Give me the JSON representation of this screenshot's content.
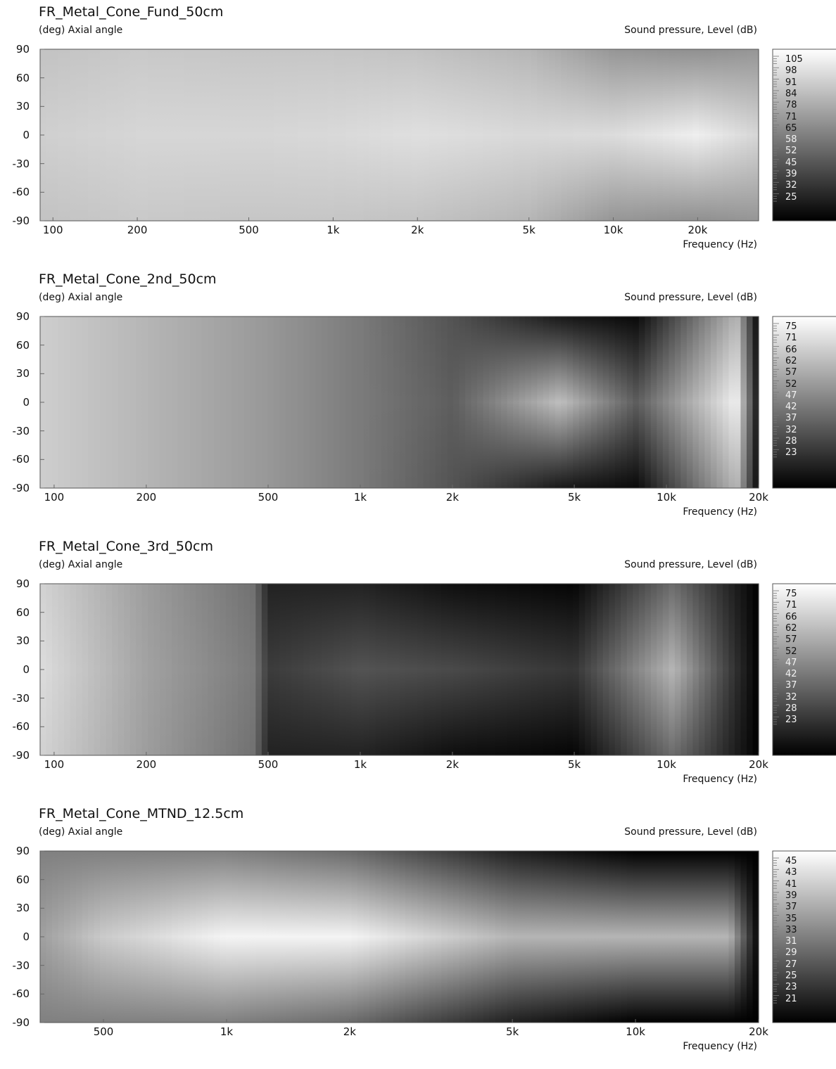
{
  "chart_data": [
    {
      "type": "heatmap",
      "title": "FR_Metal_Cone_Fund_50cm",
      "ylabel": "(deg)  Axial angle",
      "colorbar_label": "Sound pressure, Level  (dB)",
      "xlabel": "Frequency  (Hz)",
      "xscale": "log",
      "xlim": [
        90,
        33000
      ],
      "ylim": [
        -90,
        90
      ],
      "yticks": [
        90,
        60,
        30,
        0,
        -30,
        -60,
        -90
      ],
      "xticks": [
        {
          "v": 100,
          "label": "100"
        },
        {
          "v": 200,
          "label": "200"
        },
        {
          "v": 500,
          "label": "500"
        },
        {
          "v": 1000,
          "label": "1k"
        },
        {
          "v": 2000,
          "label": "2k"
        },
        {
          "v": 5000,
          "label": "5k"
        },
        {
          "v": 10000,
          "label": "10k"
        },
        {
          "v": 20000,
          "label": "20k"
        }
      ],
      "colorbar_ticks": [
        "105",
        "98",
        "91",
        "84",
        "78",
        "71",
        "65",
        "58",
        "52",
        "45",
        "39",
        "32",
        "25"
      ],
      "clim": [
        25,
        105
      ],
      "colormap": [
        "#000000",
        "#ffffff"
      ],
      "level_profile": [
        {
          "f": 90,
          "on_axis_db": 90,
          "edge_db": 86
        },
        {
          "f": 200,
          "on_axis_db": 92,
          "edge_db": 88
        },
        {
          "f": 500,
          "on_axis_db": 92,
          "edge_db": 87
        },
        {
          "f": 1000,
          "on_axis_db": 93,
          "edge_db": 87
        },
        {
          "f": 2000,
          "on_axis_db": 95,
          "edge_db": 86
        },
        {
          "f": 5000,
          "on_axis_db": 93,
          "edge_db": 82
        },
        {
          "f": 10000,
          "on_axis_db": 94,
          "edge_db": 72
        },
        {
          "f": 20000,
          "on_axis_db": 100,
          "edge_db": 70
        },
        {
          "f": 33000,
          "on_axis_db": 92,
          "edge_db": 72
        }
      ]
    },
    {
      "type": "heatmap",
      "title": "FR_Metal_Cone_2nd_50cm",
      "ylabel": "(deg)  Axial angle",
      "colorbar_label": "Sound pressure, Level  (dB)",
      "xlabel": "Frequency  (Hz)",
      "xscale": "log",
      "xlim": [
        90,
        20000
      ],
      "ylim": [
        -90,
        90
      ],
      "yticks": [
        90,
        60,
        30,
        0,
        -30,
        -60,
        -90
      ],
      "xticks": [
        {
          "v": 100,
          "label": "100"
        },
        {
          "v": 200,
          "label": "200"
        },
        {
          "v": 500,
          "label": "500"
        },
        {
          "v": 1000,
          "label": "1k"
        },
        {
          "v": 2000,
          "label": "2k"
        },
        {
          "v": 5000,
          "label": "5k"
        },
        {
          "v": 10000,
          "label": "10k"
        },
        {
          "v": 20000,
          "label": "20k"
        }
      ],
      "colorbar_ticks": [
        "75",
        "71",
        "66",
        "62",
        "57",
        "52",
        "47",
        "42",
        "37",
        "32",
        "28",
        "23"
      ],
      "clim": [
        23,
        75
      ],
      "colormap": [
        "#000000",
        "#ffffff"
      ],
      "level_profile": [
        {
          "f": 90,
          "on_axis_db": 65,
          "edge_db": 65
        },
        {
          "f": 200,
          "on_axis_db": 60,
          "edge_db": 60
        },
        {
          "f": 500,
          "on_axis_db": 54,
          "edge_db": 54
        },
        {
          "f": 1000,
          "on_axis_db": 48,
          "edge_db": 48
        },
        {
          "f": 2000,
          "on_axis_db": 42,
          "edge_db": 40
        },
        {
          "f": 4500,
          "on_axis_db": 62,
          "edge_db": 28
        },
        {
          "f": 8000,
          "on_axis_db": 42,
          "edge_db": 25
        },
        {
          "f": 11000,
          "on_axis_db": 55,
          "edge_db": 40
        },
        {
          "f": 17000,
          "on_axis_db": 72,
          "edge_db": 60
        },
        {
          "f": 20000,
          "on_axis_db": 25,
          "edge_db": 23
        }
      ]
    },
    {
      "type": "heatmap",
      "title": "FR_Metal_Cone_3rd_50cm",
      "ylabel": "(deg)  Axial angle",
      "colorbar_label": "Sound pressure, Level  (dB)",
      "xlabel": "Frequency  (Hz)",
      "xscale": "log",
      "xlim": [
        90,
        20000
      ],
      "ylim": [
        -90,
        90
      ],
      "yticks": [
        90,
        60,
        30,
        0,
        -30,
        -60,
        -90
      ],
      "xticks": [
        {
          "v": 100,
          "label": "100"
        },
        {
          "v": 200,
          "label": "200"
        },
        {
          "v": 500,
          "label": "500"
        },
        {
          "v": 1000,
          "label": "1k"
        },
        {
          "v": 2000,
          "label": "2k"
        },
        {
          "v": 5000,
          "label": "5k"
        },
        {
          "v": 10000,
          "label": "10k"
        },
        {
          "v": 20000,
          "label": "20k"
        }
      ],
      "colorbar_ticks": [
        "75",
        "71",
        "66",
        "62",
        "57",
        "52",
        "47",
        "42",
        "37",
        "32",
        "28",
        "23"
      ],
      "clim": [
        23,
        75
      ],
      "colormap": [
        "#000000",
        "#ffffff"
      ],
      "level_profile": [
        {
          "f": 90,
          "on_axis_db": 68,
          "edge_db": 66
        },
        {
          "f": 200,
          "on_axis_db": 56,
          "edge_db": 55
        },
        {
          "f": 450,
          "on_axis_db": 48,
          "edge_db": 46
        },
        {
          "f": 500,
          "on_axis_db": 35,
          "edge_db": 30
        },
        {
          "f": 1000,
          "on_axis_db": 40,
          "edge_db": 30
        },
        {
          "f": 2000,
          "on_axis_db": 38,
          "edge_db": 26
        },
        {
          "f": 5000,
          "on_axis_db": 34,
          "edge_db": 24
        },
        {
          "f": 10500,
          "on_axis_db": 60,
          "edge_db": 45
        },
        {
          "f": 20000,
          "on_axis_db": 23,
          "edge_db": 23
        }
      ]
    },
    {
      "type": "heatmap",
      "title": "FR_Metal_Cone_MTND_12.5cm",
      "ylabel": "(deg)  Axial angle",
      "colorbar_label": "Sound pressure, Level  (dB)",
      "xlabel": "Frequency  (Hz)",
      "xscale": "log",
      "xlim": [
        350,
        20000
      ],
      "ylim": [
        -90,
        90
      ],
      "yticks": [
        90,
        60,
        30,
        0,
        -30,
        -60,
        -90
      ],
      "xticks": [
        {
          "v": 500,
          "label": "500"
        },
        {
          "v": 1000,
          "label": "1k"
        },
        {
          "v": 2000,
          "label": "2k"
        },
        {
          "v": 5000,
          "label": "5k"
        },
        {
          "v": 10000,
          "label": "10k"
        },
        {
          "v": 20000,
          "label": "20k"
        }
      ],
      "colorbar_ticks": [
        "45",
        "43",
        "41",
        "39",
        "37",
        "35",
        "33",
        "31",
        "29",
        "27",
        "25",
        "23",
        "21"
      ],
      "clim": [
        21,
        45
      ],
      "colormap": [
        "#000000",
        "#ffffff"
      ],
      "level_profile": [
        {
          "f": 350,
          "on_axis_db": 36,
          "edge_db": 33
        },
        {
          "f": 500,
          "on_axis_db": 40,
          "edge_db": 33
        },
        {
          "f": 1000,
          "on_axis_db": 44,
          "edge_db": 33
        },
        {
          "f": 2000,
          "on_axis_db": 44,
          "edge_db": 31
        },
        {
          "f": 5000,
          "on_axis_db": 38,
          "edge_db": 24
        },
        {
          "f": 10000,
          "on_axis_db": 38,
          "edge_db": 21
        },
        {
          "f": 17000,
          "on_axis_db": 38,
          "edge_db": 21
        },
        {
          "f": 20000,
          "on_axis_db": 21,
          "edge_db": 21
        }
      ]
    }
  ]
}
